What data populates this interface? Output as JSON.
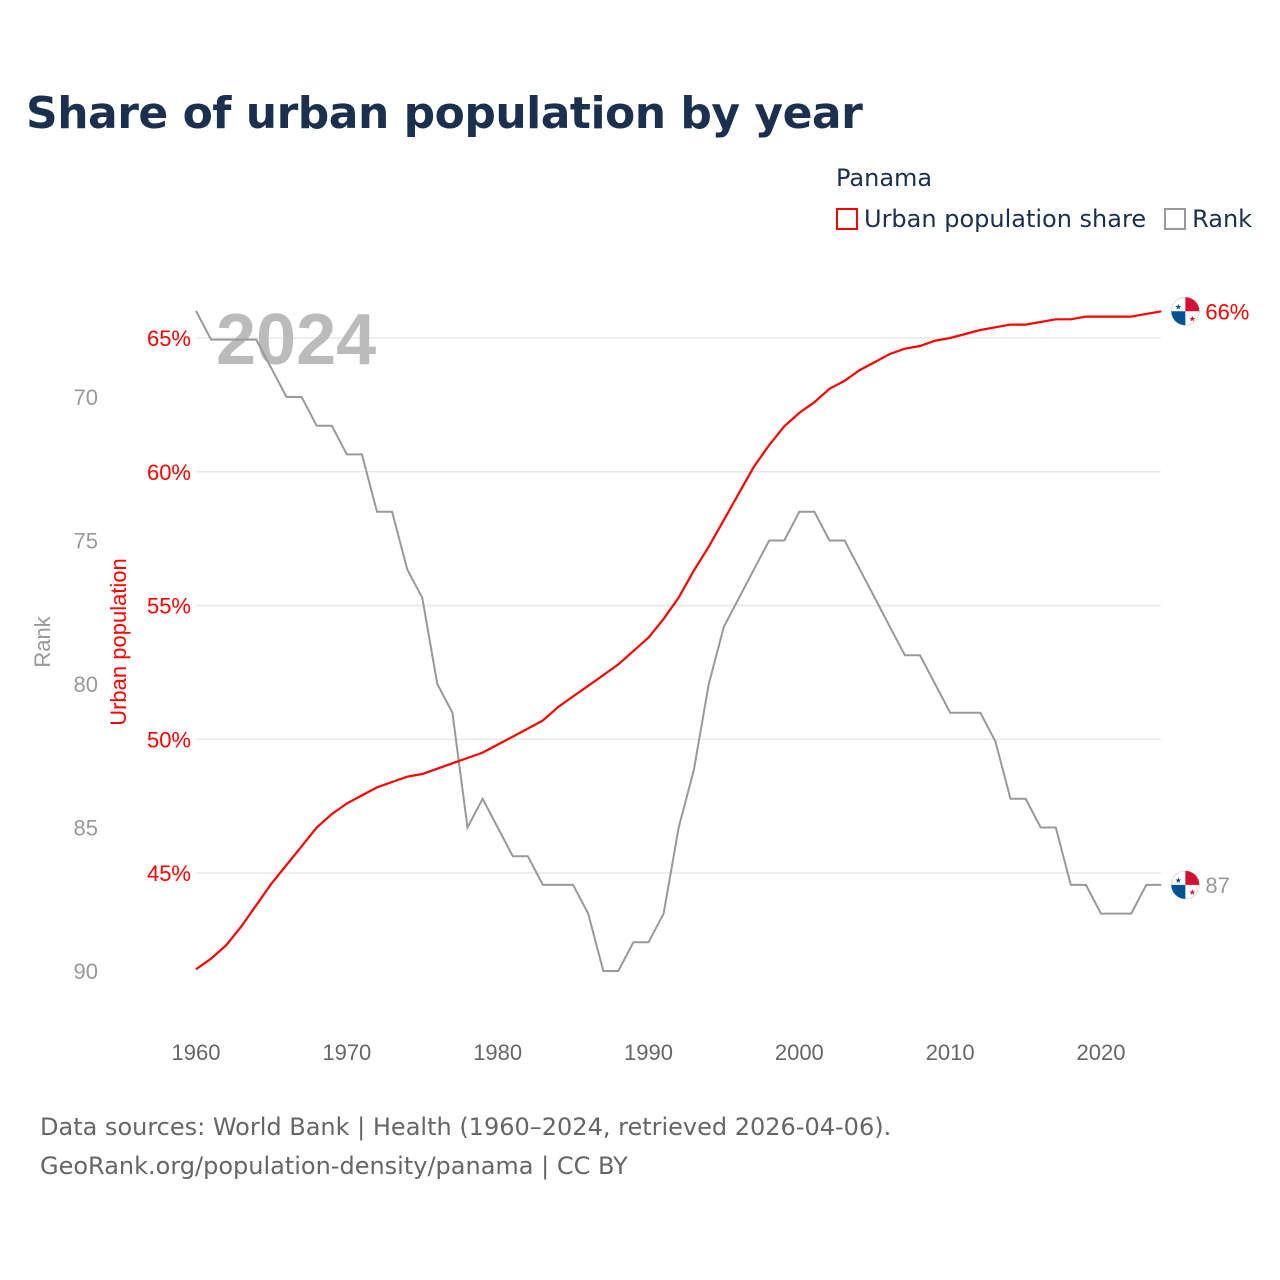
{
  "title": "Share of urban population by year",
  "legend": {
    "title": "Panama",
    "items": [
      {
        "label": "Urban population share",
        "color": "#ff0000"
      },
      {
        "label": "Rank",
        "color": "#999999"
      }
    ]
  },
  "source": {
    "line1": "Data sources: World Bank | Health (1960–2024, retrieved 2026-04-06).",
    "line2": "GeoRank.org/population-density/panama | CC BY"
  },
  "chart_data": {
    "type": "line",
    "title": "Share of urban population by year",
    "year_watermark": "2024",
    "x": [
      1960,
      1961,
      1962,
      1963,
      1964,
      1965,
      1966,
      1967,
      1968,
      1969,
      1970,
      1971,
      1972,
      1973,
      1974,
      1975,
      1976,
      1977,
      1978,
      1979,
      1980,
      1981,
      1982,
      1983,
      1984,
      1985,
      1986,
      1987,
      1988,
      1989,
      1990,
      1991,
      1992,
      1993,
      1994,
      1995,
      1996,
      1997,
      1998,
      1999,
      2000,
      2001,
      2002,
      2003,
      2004,
      2005,
      2006,
      2007,
      2008,
      2009,
      2010,
      2011,
      2012,
      2013,
      2014,
      2015,
      2016,
      2017,
      2018,
      2019,
      2020,
      2021,
      2022,
      2023,
      2024
    ],
    "xticks": [
      "1960",
      "1970",
      "1980",
      "1990",
      "2000",
      "2010",
      "2020"
    ],
    "xlim": [
      1960,
      2024
    ],
    "series": [
      {
        "name": "Urban population share",
        "axis": "left",
        "color": "#ff0000",
        "ylabel": "Urban population",
        "values": [
          41.4,
          41.8,
          42.3,
          43.0,
          43.8,
          44.6,
          45.3,
          46.0,
          46.7,
          47.2,
          47.6,
          47.9,
          48.2,
          48.4,
          48.6,
          48.7,
          48.9,
          49.1,
          49.3,
          49.5,
          49.8,
          50.1,
          50.4,
          50.7,
          51.2,
          51.6,
          52.0,
          52.4,
          52.8,
          53.3,
          53.8,
          54.5,
          55.3,
          56.3,
          57.2,
          58.2,
          59.2,
          60.2,
          61.0,
          61.7,
          62.2,
          62.6,
          63.1,
          63.4,
          63.8,
          64.1,
          64.4,
          64.6,
          64.7,
          64.9,
          65.0,
          65.15,
          65.3,
          65.4,
          65.5,
          65.5,
          65.6,
          65.7,
          65.7,
          65.8,
          65.8,
          65.8,
          65.8,
          65.9,
          66.0
        ],
        "end_label": "66%",
        "yticks": [
          "45%",
          "50%",
          "55%",
          "60%",
          "65%"
        ],
        "ytick_values": [
          45,
          50,
          55,
          60,
          65
        ]
      },
      {
        "name": "Rank",
        "axis": "right-inner",
        "color": "#999999",
        "ylabel": "Rank",
        "inverted": true,
        "values": [
          67,
          68,
          68,
          68,
          68,
          69,
          70,
          70,
          71,
          71,
          72,
          72,
          74,
          74,
          76,
          77,
          80,
          81,
          85,
          84,
          85,
          86,
          86,
          87,
          87,
          87,
          88,
          90,
          90,
          89,
          89,
          88,
          85,
          83,
          80,
          78,
          77,
          76,
          75,
          75,
          74,
          74,
          75,
          75,
          76,
          77,
          78,
          79,
          79,
          80,
          81,
          81,
          81,
          82,
          84,
          84,
          85,
          85,
          87,
          87,
          88,
          88,
          88,
          87,
          87
        ],
        "end_label": "87",
        "yticks": [
          "70",
          "75",
          "80",
          "85",
          "90"
        ],
        "ytick_values": [
          70,
          75,
          80,
          85,
          90
        ]
      }
    ]
  }
}
